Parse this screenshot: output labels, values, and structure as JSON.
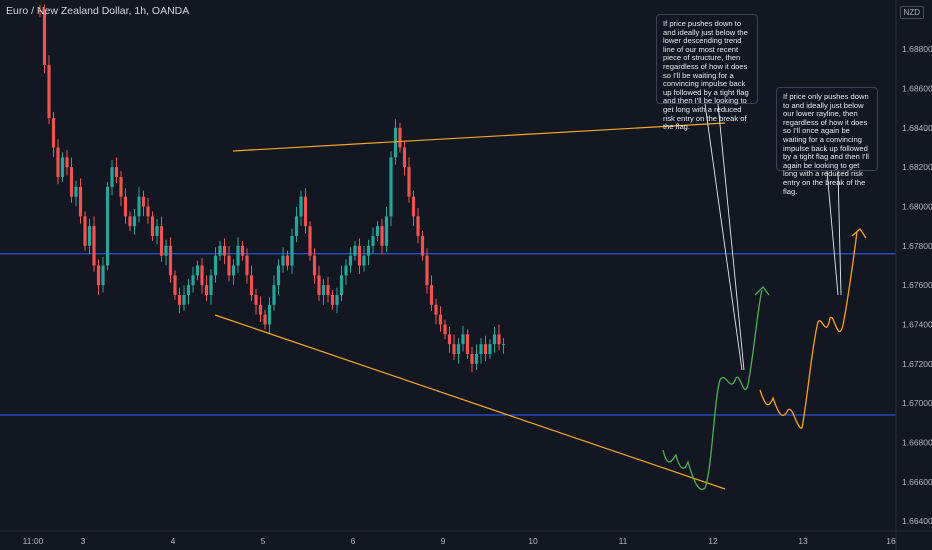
{
  "header": {
    "title": "Euro / New Zealand Dollar, 1h, OANDA",
    "currency_badge": "NZD"
  },
  "annotations": [
    "If price pushes down to and ideally just below the lower descending trend line of our most recent piece of structure, then regardless of how it does so I'll be waiting for a convincing impulse back up followed by a tight flag and then I'll be looking to get long with a reduced risk entry on the break of the flag.",
    "If price only pushes down to and ideally just below our lower rayline, then regardless of how it does so I'll once again be waiting for a convincing impulse back up followed by a tight flag and then I'll again be looking to get long with a reduced risk entry on the break of the flag."
  ],
  "colors": {
    "background": "#131722",
    "up_candle": "#26a69a",
    "down_candle": "#ef5350",
    "trendline": "#f5a623",
    "rayline": "#2962ff",
    "path_green": "#4caf50",
    "path_orange": "#f7a21b"
  },
  "chart_data": {
    "type": "candlestick",
    "title": "Euro / New Zealand Dollar, 1h, OANDA",
    "y_axis": {
      "ticks": [
        "1.68800",
        "1.68600",
        "1.68400",
        "1.68200",
        "1.68000",
        "1.67800",
        "1.67600",
        "1.67400",
        "1.67200",
        "1.67000",
        "1.66800",
        "1.66600",
        "1.66400"
      ],
      "range": [
        1.6635,
        1.6905
      ]
    },
    "x_axis": {
      "ticks": [
        "11:00",
        "3",
        "4",
        "5",
        "6",
        "9",
        "10",
        "11",
        "12",
        "13",
        "16"
      ],
      "range_index": [
        0,
        220
      ]
    },
    "rays": [
      1.6776,
      1.6694
    ],
    "trendlines": [
      {
        "from": [
          57,
          1.68312
        ],
        "to": [
          175,
          1.68452
        ]
      },
      {
        "from": [
          53,
          1.67468
        ],
        "to": [
          177,
          1.6658
        ]
      }
    ],
    "closes": [
      1.6899,
      1.6872,
      1.6845,
      1.683,
      1.6815,
      1.6825,
      1.682,
      1.6805,
      1.681,
      1.6795,
      1.678,
      1.679,
      1.677,
      1.676,
      1.677,
      1.681,
      1.682,
      1.6815,
      1.6805,
      1.6795,
      1.679,
      1.6795,
      1.6805,
      1.68,
      1.6795,
      1.6785,
      1.679,
      1.6775,
      1.678,
      1.6765,
      1.6755,
      1.675,
      1.6755,
      1.676,
      1.6765,
      1.677,
      1.676,
      1.6755,
      1.6765,
      1.6775,
      1.678,
      1.6775,
      1.6765,
      1.677,
      1.678,
      1.6775,
      1.6765,
      1.6755,
      1.675,
      1.6745,
      1.674,
      1.675,
      1.676,
      1.677,
      1.6775,
      1.677,
      1.6785,
      1.6795,
      1.6805,
      1.679,
      1.6775,
      1.6765,
      1.6755,
      1.676,
      1.6755,
      1.675,
      1.6755,
      1.6765,
      1.677,
      1.6775,
      1.678,
      1.677,
      1.6775,
      1.678,
      1.6785,
      1.679,
      1.678,
      1.6795,
      1.6825,
      1.684,
      1.683,
      1.682,
      1.6805,
      1.6795,
      1.6785,
      1.6775,
      1.676,
      1.675,
      1.6745,
      1.674,
      1.6735,
      1.673,
      1.6725,
      1.673,
      1.6735,
      1.6725,
      1.672,
      1.6725,
      1.673,
      1.6725,
      1.673,
      1.6735,
      1.673,
      1.673
    ]
  }
}
